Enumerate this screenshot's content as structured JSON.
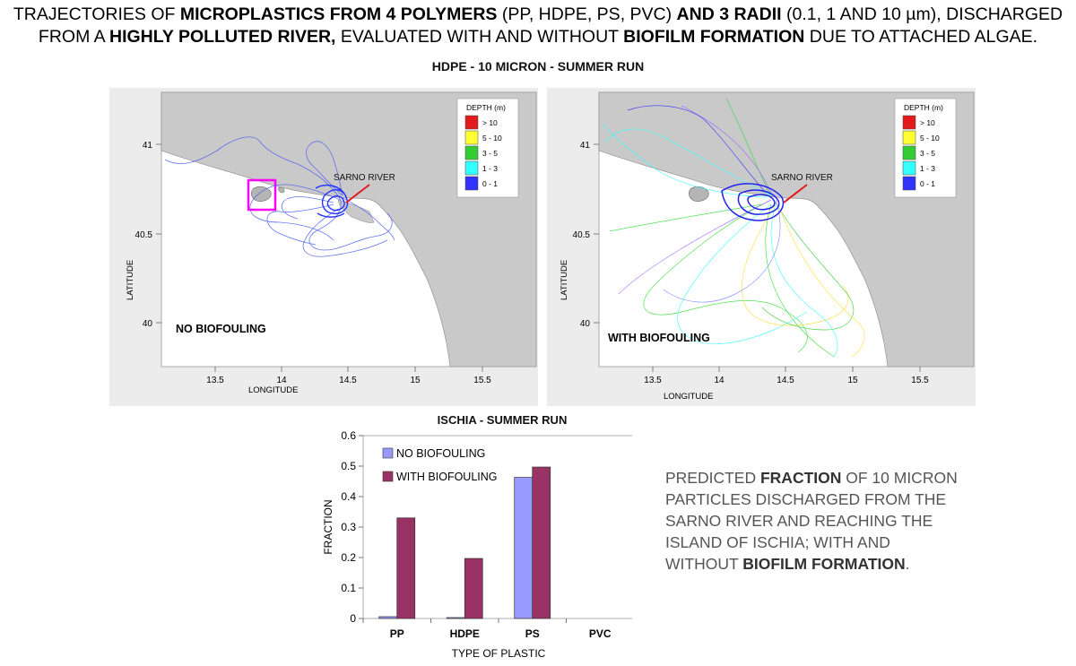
{
  "header": {
    "title_parts": [
      {
        "t": "TRAJECTORIES OF ",
        "b": false
      },
      {
        "t": "MICROPLASTICS FROM 4 POLYMERS",
        "b": true
      },
      {
        "t": " (PP, HDPE, PS, PVC) ",
        "b": false
      },
      {
        "t": "AND 3 RADII",
        "b": true
      },
      {
        "t": " (0.1, 1 AND 10 µm), DISCHARGED FROM A ",
        "b": false
      },
      {
        "t": "HIGHLY POLLUTED RIVER,",
        "b": true
      },
      {
        "t": " EVALUATED WITH AND WITHOUT ",
        "b": false
      },
      {
        "t": "BIOFILM FORMATION",
        "b": true
      },
      {
        "t": " DUE TO ATTACHED ALGAE.",
        "b": false
      }
    ],
    "subtitle": "HDPE - 10 MICRON - SUMMER RUN"
  },
  "maps": {
    "xlabel": "LONGITUDE",
    "ylabel": "LATITUDE",
    "x_ticks": [
      "13.5",
      "14",
      "14.5",
      "15",
      "15.5"
    ],
    "y_ticks": [
      "41",
      "40.5",
      "40"
    ],
    "legend_title": "DEPTH (m)",
    "legend": [
      {
        "label": "> 10",
        "color": "#e31a1c"
      },
      {
        "label": "5 - 10",
        "color": "#ffff33"
      },
      {
        "label": "3 - 5",
        "color": "#33cc33"
      },
      {
        "label": "1 - 3",
        "color": "#33ffff"
      },
      {
        "label": "0 - 1",
        "color": "#3333ff"
      }
    ],
    "river_label": "SARNO RIVER",
    "left_label": "NO BIOFOULING",
    "right_label": "WITH BIOFOULING"
  },
  "description": {
    "parts": [
      {
        "t": "PREDICTED ",
        "b": false
      },
      {
        "t": "FRACTION",
        "b": true
      },
      {
        "t": " OF 10 MICRON PARTICLES DISCHARGED FROM THE SARNO RIVER AND REACHING THE ISLAND OF ISCHIA; WITH AND WITHOUT ",
        "b": false
      },
      {
        "t": "BIOFILM FORMATION",
        "b": true
      },
      {
        "t": ".",
        "b": false
      }
    ]
  },
  "chart_data": {
    "type": "bar",
    "title": "ISCHIA - SUMMER RUN",
    "xlabel": "TYPE OF PLASTIC",
    "ylabel": "FRACTION",
    "categories": [
      "PP",
      "HDPE",
      "PS",
      "PVC"
    ],
    "series": [
      {
        "name": "NO BIOFOULING",
        "color": "#9999ff",
        "values": [
          0.006,
          0.003,
          0.463,
          0
        ]
      },
      {
        "name": "WITH BIOFOULING",
        "color": "#993366",
        "values": [
          0.33,
          0.197,
          0.497,
          0
        ]
      }
    ],
    "ylim": [
      0,
      0.6
    ],
    "yticks": [
      "0",
      "0.1",
      "0.2",
      "0.3",
      "0.4",
      "0.5",
      "0.6"
    ],
    "grid": false,
    "legend_position": "top-left"
  }
}
